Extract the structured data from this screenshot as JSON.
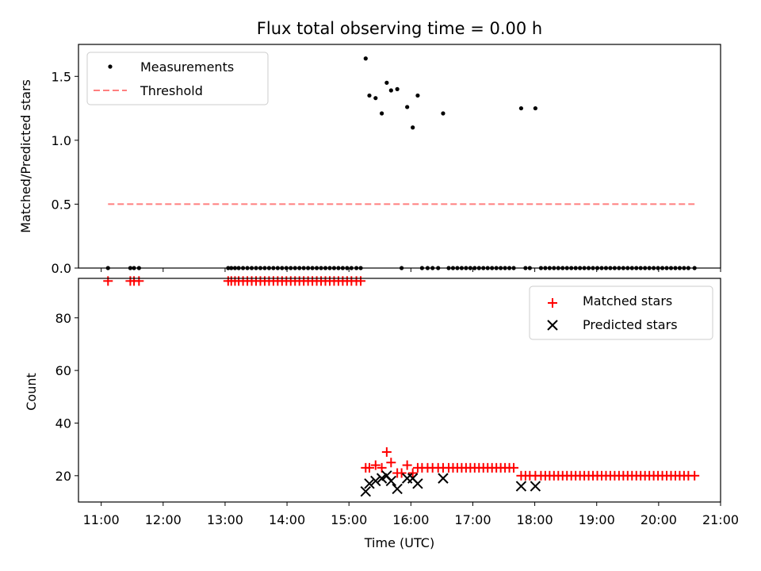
{
  "chart_data": [
    {
      "type": "scatter",
      "panel": "top",
      "title": "Flux total observing time = 0.00 h",
      "xlabel": "",
      "ylabel": "Matched/Predicted stars",
      "xlim": [
        10.633,
        21.0
      ],
      "ylim": [
        0.0,
        1.75
      ],
      "yticks": [
        0.0,
        0.5,
        1.0,
        1.5
      ],
      "ytick_labels": [
        "0.0",
        "0.5",
        "1.0",
        "1.5"
      ],
      "grid": false,
      "legend": {
        "placement": "upper-left",
        "entries": [
          "Measurements",
          "Threshold"
        ]
      },
      "threshold": {
        "name": "Threshold",
        "y": 0.5,
        "x": [
          11.11,
          20.58
        ],
        "color": "#ff7f7f",
        "style": "dashed"
      },
      "series": [
        {
          "name": "Measurements",
          "color": "#000000",
          "marker": "dot",
          "points": [
            [
              11.11,
              0.0
            ],
            [
              11.47,
              0.0
            ],
            [
              11.53,
              0.0
            ],
            [
              11.61,
              0.0
            ],
            [
              13.05,
              0.0
            ],
            [
              13.1,
              0.0
            ],
            [
              13.16,
              0.0
            ],
            [
              13.22,
              0.0
            ],
            [
              13.29,
              0.0
            ],
            [
              13.36,
              0.0
            ],
            [
              13.43,
              0.0
            ],
            [
              13.5,
              0.0
            ],
            [
              13.57,
              0.0
            ],
            [
              13.64,
              0.0
            ],
            [
              13.71,
              0.0
            ],
            [
              13.78,
              0.0
            ],
            [
              13.85,
              0.0
            ],
            [
              13.92,
              0.0
            ],
            [
              13.99,
              0.0
            ],
            [
              14.06,
              0.0
            ],
            [
              14.13,
              0.0
            ],
            [
              14.2,
              0.0
            ],
            [
              14.27,
              0.0
            ],
            [
              14.34,
              0.0
            ],
            [
              14.41,
              0.0
            ],
            [
              14.48,
              0.0
            ],
            [
              14.55,
              0.0
            ],
            [
              14.62,
              0.0
            ],
            [
              14.69,
              0.0
            ],
            [
              14.76,
              0.0
            ],
            [
              14.83,
              0.0
            ],
            [
              14.9,
              0.0
            ],
            [
              14.97,
              0.0
            ],
            [
              15.04,
              0.0
            ],
            [
              15.12,
              0.0
            ],
            [
              15.19,
              0.0
            ],
            [
              15.27,
              1.64
            ],
            [
              15.33,
              1.35
            ],
            [
              15.43,
              1.33
            ],
            [
              15.53,
              1.21
            ],
            [
              15.61,
              1.45
            ],
            [
              15.68,
              1.39
            ],
            [
              15.78,
              1.4
            ],
            [
              15.85,
              0.0
            ],
            [
              15.94,
              1.26
            ],
            [
              16.03,
              1.1
            ],
            [
              16.11,
              1.35
            ],
            [
              16.18,
              0.0
            ],
            [
              16.27,
              0.0
            ],
            [
              16.35,
              0.0
            ],
            [
              16.44,
              0.0
            ],
            [
              16.52,
              1.21
            ],
            [
              16.61,
              0.0
            ],
            [
              16.68,
              0.0
            ],
            [
              16.75,
              0.0
            ],
            [
              16.82,
              0.0
            ],
            [
              16.89,
              0.0
            ],
            [
              16.96,
              0.0
            ],
            [
              17.03,
              0.0
            ],
            [
              17.1,
              0.0
            ],
            [
              17.17,
              0.0
            ],
            [
              17.24,
              0.0
            ],
            [
              17.31,
              0.0
            ],
            [
              17.38,
              0.0
            ],
            [
              17.45,
              0.0
            ],
            [
              17.52,
              0.0
            ],
            [
              17.59,
              0.0
            ],
            [
              17.66,
              0.0
            ],
            [
              17.78,
              1.25
            ],
            [
              17.85,
              0.0
            ],
            [
              17.92,
              0.0
            ],
            [
              18.01,
              1.25
            ],
            [
              18.1,
              0.0
            ],
            [
              18.17,
              0.0
            ],
            [
              18.24,
              0.0
            ],
            [
              18.31,
              0.0
            ],
            [
              18.38,
              0.0
            ],
            [
              18.45,
              0.0
            ],
            [
              18.52,
              0.0
            ],
            [
              18.59,
              0.0
            ],
            [
              18.66,
              0.0
            ],
            [
              18.73,
              0.0
            ],
            [
              18.8,
              0.0
            ],
            [
              18.87,
              0.0
            ],
            [
              18.94,
              0.0
            ],
            [
              19.01,
              0.0
            ],
            [
              19.08,
              0.0
            ],
            [
              19.15,
              0.0
            ],
            [
              19.22,
              0.0
            ],
            [
              19.29,
              0.0
            ],
            [
              19.36,
              0.0
            ],
            [
              19.43,
              0.0
            ],
            [
              19.5,
              0.0
            ],
            [
              19.57,
              0.0
            ],
            [
              19.64,
              0.0
            ],
            [
              19.71,
              0.0
            ],
            [
              19.78,
              0.0
            ],
            [
              19.85,
              0.0
            ],
            [
              19.92,
              0.0
            ],
            [
              19.99,
              0.0
            ],
            [
              20.06,
              0.0
            ],
            [
              20.13,
              0.0
            ],
            [
              20.2,
              0.0
            ],
            [
              20.27,
              0.0
            ],
            [
              20.34,
              0.0
            ],
            [
              20.41,
              0.0
            ],
            [
              20.48,
              0.0
            ],
            [
              20.58,
              0.0
            ]
          ]
        }
      ]
    },
    {
      "type": "scatter",
      "panel": "bottom",
      "xlabel": "Time (UTC)",
      "ylabel": "Count",
      "xlim": [
        10.633,
        21.0
      ],
      "ylim": [
        10,
        95
      ],
      "xticks": [
        11,
        12,
        13,
        14,
        15,
        16,
        17,
        18,
        19,
        20,
        21
      ],
      "xtick_labels": [
        "11:00",
        "12:00",
        "13:00",
        "14:00",
        "15:00",
        "16:00",
        "17:00",
        "18:00",
        "19:00",
        "20:00",
        "21:00"
      ],
      "yticks": [
        20,
        40,
        60,
        80
      ],
      "ytick_labels": [
        "20",
        "40",
        "60",
        "80"
      ],
      "grid": false,
      "legend": {
        "placement": "upper-right",
        "entries": [
          "Matched stars",
          "Predicted stars"
        ]
      },
      "series": [
        {
          "name": "Matched stars",
          "color": "#ff0000",
          "marker": "plus",
          "points": [
            [
              11.11,
              94
            ],
            [
              11.47,
              94
            ],
            [
              11.53,
              94
            ],
            [
              11.61,
              94
            ],
            [
              13.05,
              94
            ],
            [
              13.1,
              94
            ],
            [
              13.16,
              94
            ],
            [
              13.22,
              94
            ],
            [
              13.29,
              94
            ],
            [
              13.36,
              94
            ],
            [
              13.43,
              94
            ],
            [
              13.5,
              94
            ],
            [
              13.57,
              94
            ],
            [
              13.64,
              94
            ],
            [
              13.71,
              94
            ],
            [
              13.78,
              94
            ],
            [
              13.85,
              94
            ],
            [
              13.92,
              94
            ],
            [
              13.99,
              94
            ],
            [
              14.06,
              94
            ],
            [
              14.13,
              94
            ],
            [
              14.2,
              94
            ],
            [
              14.27,
              94
            ],
            [
              14.34,
              94
            ],
            [
              14.41,
              94
            ],
            [
              14.48,
              94
            ],
            [
              14.55,
              94
            ],
            [
              14.62,
              94
            ],
            [
              14.69,
              94
            ],
            [
              14.76,
              94
            ],
            [
              14.83,
              94
            ],
            [
              14.9,
              94
            ],
            [
              14.97,
              94
            ],
            [
              15.04,
              94
            ],
            [
              15.12,
              94
            ],
            [
              15.19,
              94
            ],
            [
              15.27,
              23
            ],
            [
              15.33,
              23
            ],
            [
              15.43,
              24
            ],
            [
              15.53,
              23
            ],
            [
              15.61,
              29
            ],
            [
              15.68,
              25
            ],
            [
              15.78,
              21
            ],
            [
              15.85,
              21
            ],
            [
              15.94,
              24
            ],
            [
              16.03,
              21
            ],
            [
              16.11,
              23
            ],
            [
              16.18,
              23
            ],
            [
              16.27,
              23
            ],
            [
              16.35,
              23
            ],
            [
              16.44,
              23
            ],
            [
              16.52,
              23
            ],
            [
              16.61,
              23
            ],
            [
              16.68,
              23
            ],
            [
              16.75,
              23
            ],
            [
              16.82,
              23
            ],
            [
              16.89,
              23
            ],
            [
              16.96,
              23
            ],
            [
              17.03,
              23
            ],
            [
              17.1,
              23
            ],
            [
              17.17,
              23
            ],
            [
              17.24,
              23
            ],
            [
              17.31,
              23
            ],
            [
              17.38,
              23
            ],
            [
              17.45,
              23
            ],
            [
              17.52,
              23
            ],
            [
              17.59,
              23
            ],
            [
              17.66,
              23
            ],
            [
              17.78,
              20
            ],
            [
              17.85,
              20
            ],
            [
              17.92,
              20
            ],
            [
              18.01,
              20
            ],
            [
              18.1,
              20
            ],
            [
              18.17,
              20
            ],
            [
              18.24,
              20
            ],
            [
              18.31,
              20
            ],
            [
              18.38,
              20
            ],
            [
              18.45,
              20
            ],
            [
              18.52,
              20
            ],
            [
              18.59,
              20
            ],
            [
              18.66,
              20
            ],
            [
              18.73,
              20
            ],
            [
              18.8,
              20
            ],
            [
              18.87,
              20
            ],
            [
              18.94,
              20
            ],
            [
              19.01,
              20
            ],
            [
              19.08,
              20
            ],
            [
              19.15,
              20
            ],
            [
              19.22,
              20
            ],
            [
              19.29,
              20
            ],
            [
              19.36,
              20
            ],
            [
              19.43,
              20
            ],
            [
              19.5,
              20
            ],
            [
              19.57,
              20
            ],
            [
              19.64,
              20
            ],
            [
              19.71,
              20
            ],
            [
              19.78,
              20
            ],
            [
              19.85,
              20
            ],
            [
              19.92,
              20
            ],
            [
              19.99,
              20
            ],
            [
              20.06,
              20
            ],
            [
              20.13,
              20
            ],
            [
              20.2,
              20
            ],
            [
              20.27,
              20
            ],
            [
              20.34,
              20
            ],
            [
              20.41,
              20
            ],
            [
              20.48,
              20
            ],
            [
              20.58,
              20
            ]
          ]
        },
        {
          "name": "Predicted stars",
          "color": "#000000",
          "marker": "x",
          "points": [
            [
              15.27,
              14
            ],
            [
              15.33,
              17
            ],
            [
              15.43,
              18
            ],
            [
              15.53,
              19
            ],
            [
              15.61,
              20
            ],
            [
              15.68,
              18
            ],
            [
              15.78,
              15
            ],
            [
              15.94,
              19
            ],
            [
              16.03,
              19
            ],
            [
              16.11,
              17
            ],
            [
              16.52,
              19
            ],
            [
              17.78,
              16
            ],
            [
              18.01,
              16
            ]
          ]
        }
      ]
    }
  ]
}
